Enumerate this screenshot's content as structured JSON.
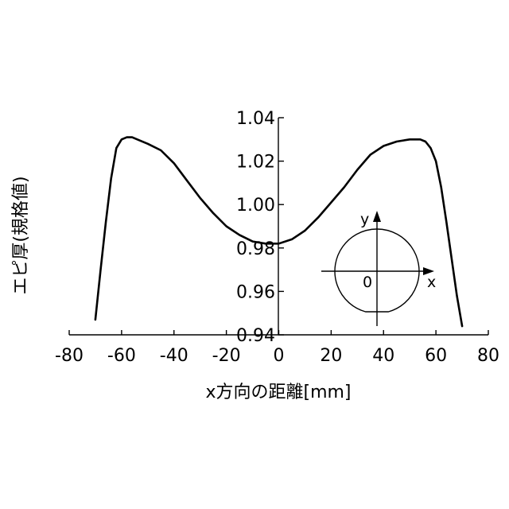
{
  "chart_data": {
    "type": "line",
    "xlabel": "x方向の距離[mm]",
    "ylabel": "エピ厚(規格値)",
    "xlim": [
      -80,
      80
    ],
    "ylim": [
      0.94,
      1.04
    ],
    "x_ticks": [
      "-80",
      "-60",
      "-40",
      "-20",
      "0",
      "20",
      "40",
      "60",
      "80"
    ],
    "y_ticks": [
      "0.94",
      "0.96",
      "0.98",
      "1.00",
      "1.02",
      "1.04"
    ],
    "grid": false,
    "series": [
      {
        "x": [
          -70,
          -68,
          -66,
          -64,
          -62,
          -60,
          -58,
          -56,
          -54,
          -50,
          -45,
          -40,
          -35,
          -30,
          -25,
          -20,
          -15,
          -10,
          -5,
          0,
          5,
          10,
          15,
          20,
          25,
          30,
          35,
          40,
          45,
          50,
          54,
          56,
          58,
          60,
          62,
          64,
          66,
          68,
          70
        ],
        "y": [
          0.947,
          0.97,
          0.992,
          1.012,
          1.026,
          1.03,
          1.031,
          1.031,
          1.03,
          1.028,
          1.025,
          1.019,
          1.011,
          1.003,
          0.996,
          0.99,
          0.986,
          0.983,
          0.982,
          0.982,
          0.984,
          0.988,
          0.994,
          1.001,
          1.008,
          1.016,
          1.023,
          1.027,
          1.029,
          1.03,
          1.03,
          1.029,
          1.026,
          1.02,
          1.008,
          0.992,
          0.975,
          0.958,
          0.944
        ]
      }
    ]
  },
  "inset": {
    "x_label": "x",
    "y_label": "y",
    "origin_label": "0"
  }
}
